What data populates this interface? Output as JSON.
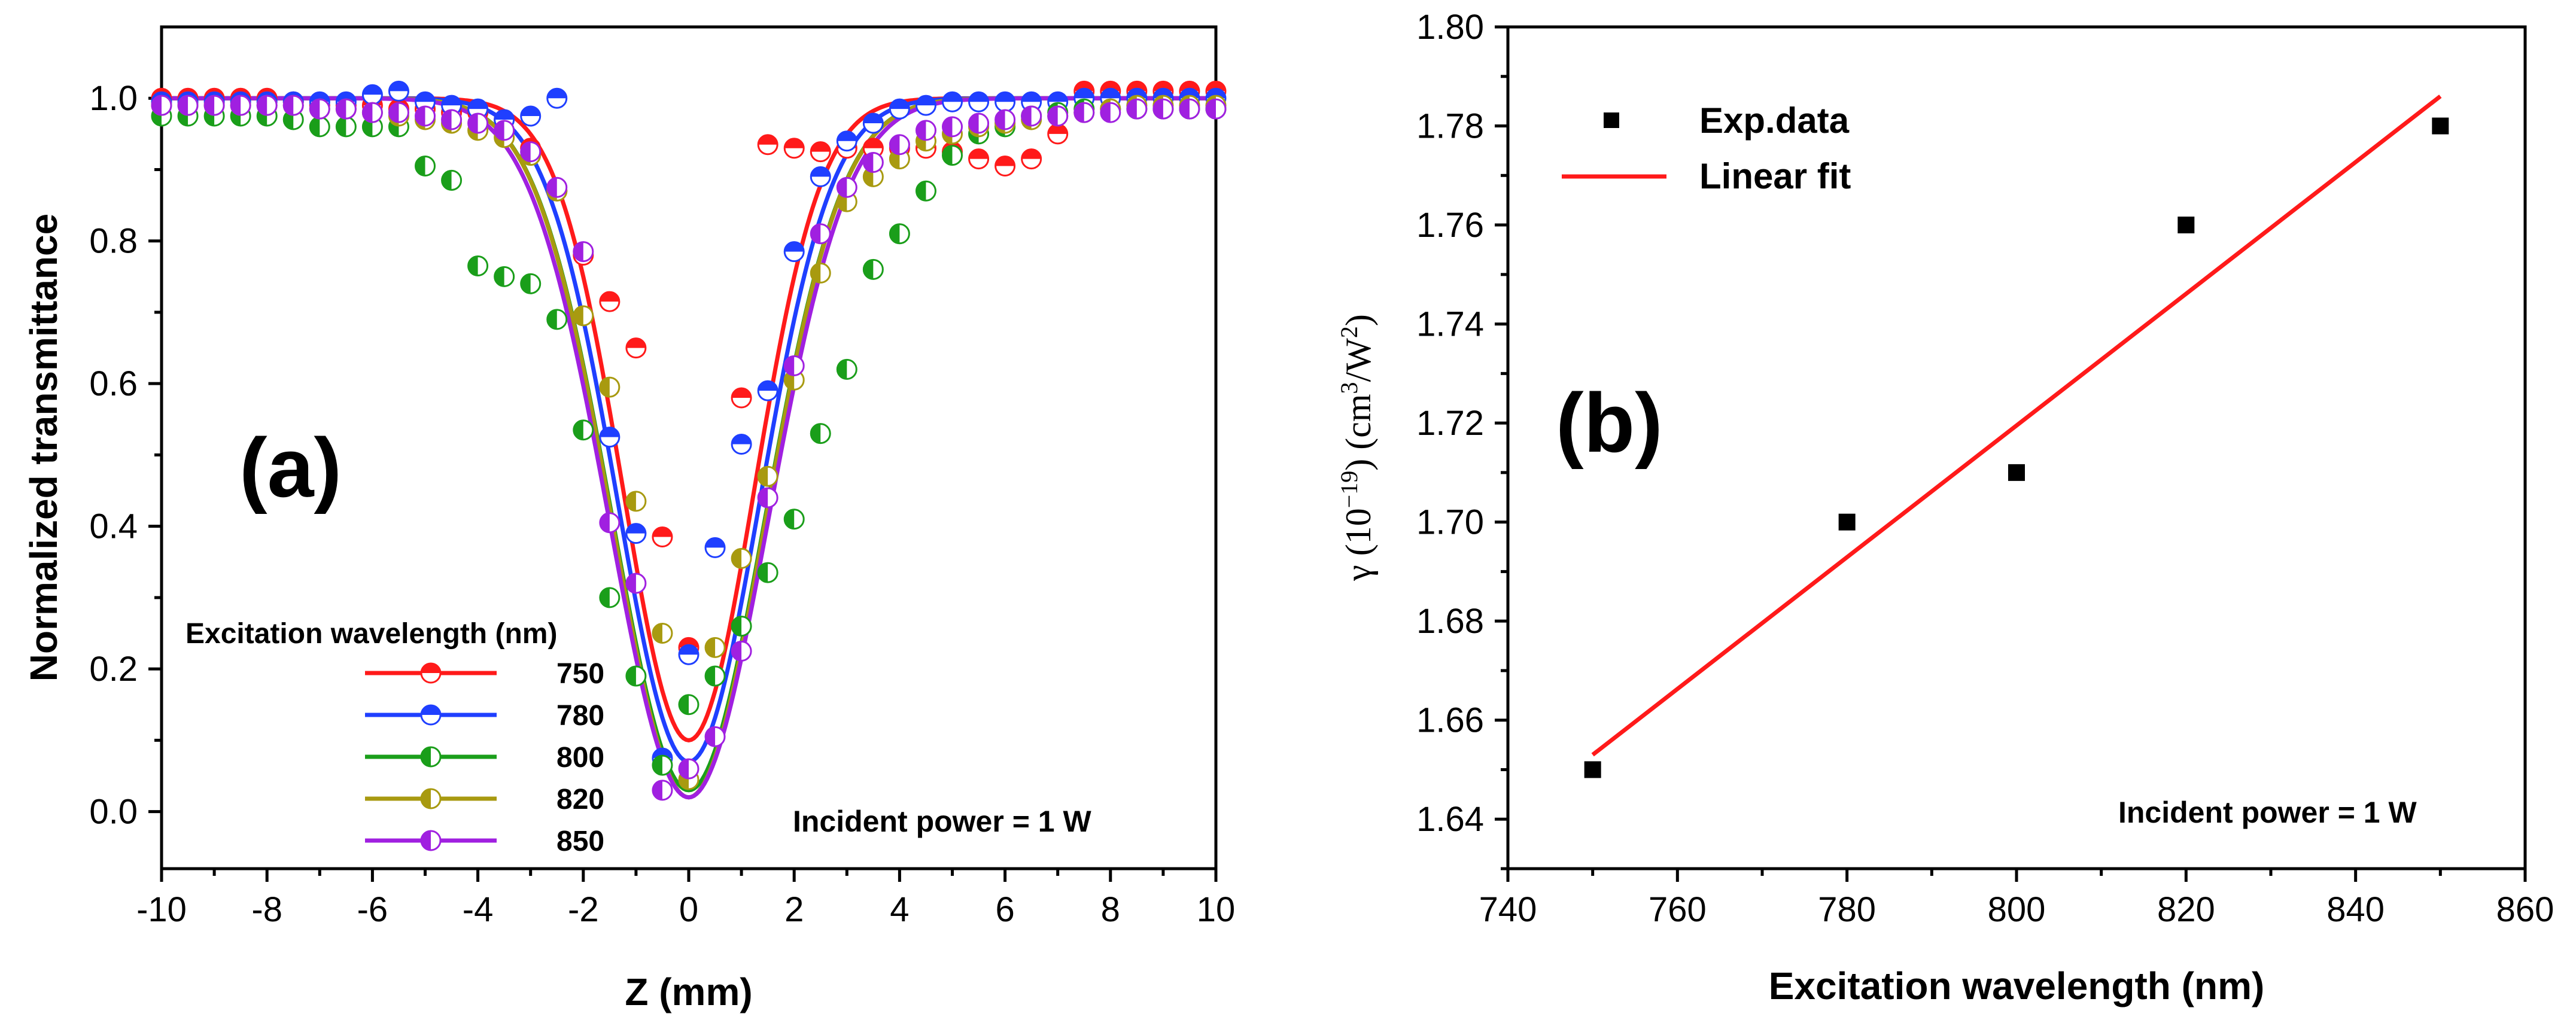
{
  "colors": {
    "750": "#ff1a1a",
    "780": "#1f3fff",
    "800": "#1a9e1a",
    "820": "#a89a10",
    "850": "#a020e0",
    "fit_b": "#ff1a1a",
    "points_b": "#000000"
  },
  "chart_data": [
    {
      "panel": "(a)",
      "type": "scatter",
      "xlabel": "Z (mm)",
      "ylabel": "Normalized transmittance",
      "xlim": [
        -10,
        10
      ],
      "ylim": [
        -0.08,
        1.1
      ],
      "xticks": [
        -10,
        -8,
        -6,
        -4,
        -2,
        0,
        2,
        4,
        6,
        8,
        10
      ],
      "xtick_labels": [
        "-10",
        "-8",
        "-6",
        "-4",
        "-2",
        "0",
        "2",
        "4",
        "6",
        "8",
        "10"
      ],
      "yticks": [
        0.0,
        0.2,
        0.4,
        0.6,
        0.8,
        1.0
      ],
      "ytick_labels": [
        "0.0",
        "0.2",
        "0.4",
        "0.6",
        "0.8",
        "1.0"
      ],
      "legend_title": "Excitation wavelength (nm)",
      "annotation": "Incident power = 1 W",
      "series": [
        {
          "name": "750",
          "color_key": "750",
          "marker_split": "horizontal",
          "fit": {
            "min": 0.1,
            "sigma": 1.25
          },
          "points": [
            [
              -10,
              1.0
            ],
            [
              -9.5,
              1.0
            ],
            [
              -9,
              1.0
            ],
            [
              -8.5,
              1.0
            ],
            [
              -8,
              1.0
            ],
            [
              -7.5,
              0.995
            ],
            [
              -7,
              0.99
            ],
            [
              -6.5,
              0.99
            ],
            [
              -6,
              0.99
            ],
            [
              -5.5,
              0.985
            ],
            [
              -5,
              0.985
            ],
            [
              -4.5,
              0.98
            ],
            [
              -4,
              0.98
            ],
            [
              -3.5,
              0.97
            ],
            [
              -3,
              0.93
            ],
            [
              -2.5,
              0.87
            ],
            [
              -2,
              0.78
            ],
            [
              -1.5,
              0.715
            ],
            [
              -1,
              0.65
            ],
            [
              -0.5,
              0.385
            ],
            [
              0,
              0.23
            ],
            [
              1,
              0.58
            ],
            [
              1.5,
              0.935
            ],
            [
              2,
              0.93
            ],
            [
              2.5,
              0.925
            ],
            [
              3,
              0.93
            ],
            [
              3.5,
              0.93
            ],
            [
              4,
              0.93
            ],
            [
              4.5,
              0.93
            ],
            [
              5,
              0.925
            ],
            [
              5.5,
              0.915
            ],
            [
              6,
              0.905
            ],
            [
              6.5,
              0.915
            ],
            [
              7,
              0.95
            ],
            [
              7.5,
              1.01
            ],
            [
              8,
              1.01
            ],
            [
              8.5,
              1.01
            ],
            [
              9,
              1.01
            ],
            [
              9.5,
              1.01
            ],
            [
              10,
              1.01
            ]
          ]
        },
        {
          "name": "780",
          "color_key": "780",
          "marker_split": "horizontal",
          "fit": {
            "min": 0.07,
            "sigma": 1.35
          },
          "points": [
            [
              -10,
              0.995
            ],
            [
              -9.5,
              0.995
            ],
            [
              -9,
              0.995
            ],
            [
              -8.5,
              0.995
            ],
            [
              -8,
              0.995
            ],
            [
              -7.5,
              0.995
            ],
            [
              -7,
              0.995
            ],
            [
              -6.5,
              0.995
            ],
            [
              -6,
              1.005
            ],
            [
              -5.5,
              1.01
            ],
            [
              -5,
              0.995
            ],
            [
              -4.5,
              0.99
            ],
            [
              -4,
              0.985
            ],
            [
              -3.5,
              0.97
            ],
            [
              -3,
              0.975
            ],
            [
              -2.5,
              1.0
            ],
            [
              -1.5,
              0.525
            ],
            [
              -1,
              0.39
            ],
            [
              -0.5,
              0.075
            ],
            [
              0,
              0.22
            ],
            [
              0.5,
              0.37
            ],
            [
              1,
              0.515
            ],
            [
              1.5,
              0.59
            ],
            [
              2,
              0.785
            ],
            [
              2.5,
              0.89
            ],
            [
              3,
              0.94
            ],
            [
              3.5,
              0.965
            ],
            [
              4,
              0.985
            ],
            [
              4.5,
              0.99
            ],
            [
              5,
              0.995
            ],
            [
              5.5,
              0.995
            ],
            [
              6,
              0.995
            ],
            [
              6.5,
              0.995
            ],
            [
              7,
              0.995
            ],
            [
              7.5,
              1.0
            ],
            [
              8,
              1.0
            ],
            [
              8.5,
              1.0
            ],
            [
              9,
              1.0
            ],
            [
              9.5,
              1.0
            ],
            [
              10,
              1.0
            ]
          ]
        },
        {
          "name": "800",
          "color_key": "800",
          "marker_split": "vertical",
          "fit": {
            "min": 0.03,
            "sigma": 1.45
          },
          "points": [
            [
              -10,
              0.975
            ],
            [
              -9.5,
              0.975
            ],
            [
              -9,
              0.975
            ],
            [
              -8.5,
              0.975
            ],
            [
              -8,
              0.975
            ],
            [
              -7.5,
              0.97
            ],
            [
              -7,
              0.96
            ],
            [
              -6.5,
              0.96
            ],
            [
              -6,
              0.96
            ],
            [
              -5.5,
              0.96
            ],
            [
              -5,
              0.905
            ],
            [
              -4.5,
              0.885
            ],
            [
              -4,
              0.765
            ],
            [
              -3.5,
              0.75
            ],
            [
              -3,
              0.74
            ],
            [
              -2.5,
              0.69
            ],
            [
              -2,
              0.535
            ],
            [
              -1.5,
              0.3
            ],
            [
              -1,
              0.19
            ],
            [
              -0.5,
              0.065
            ],
            [
              0,
              0.15
            ],
            [
              0.5,
              0.19
            ],
            [
              1,
              0.26
            ],
            [
              1.5,
              0.335
            ],
            [
              2,
              0.41
            ],
            [
              2.5,
              0.53
            ],
            [
              3,
              0.62
            ],
            [
              3.5,
              0.76
            ],
            [
              4,
              0.81
            ],
            [
              4.5,
              0.87
            ],
            [
              5,
              0.92
            ],
            [
              5.5,
              0.95
            ],
            [
              6,
              0.96
            ],
            [
              6.5,
              0.975
            ],
            [
              7,
              0.98
            ],
            [
              7.5,
              0.985
            ],
            [
              8,
              0.985
            ],
            [
              8.5,
              0.985
            ],
            [
              9,
              0.985
            ],
            [
              9.5,
              0.985
            ],
            [
              10,
              0.985
            ]
          ]
        },
        {
          "name": "820",
          "color_key": "820",
          "marker_split": "vertical",
          "fit": {
            "min": 0.02,
            "sigma": 1.45
          },
          "points": [
            [
              -10,
              0.99
            ],
            [
              -9.5,
              0.99
            ],
            [
              -9,
              0.99
            ],
            [
              -8.5,
              0.99
            ],
            [
              -8,
              0.99
            ],
            [
              -7.5,
              0.99
            ],
            [
              -7,
              0.985
            ],
            [
              -6.5,
              0.985
            ],
            [
              -6,
              0.98
            ],
            [
              -5.5,
              0.975
            ],
            [
              -5,
              0.97
            ],
            [
              -4.5,
              0.965
            ],
            [
              -4,
              0.955
            ],
            [
              -3.5,
              0.945
            ],
            [
              -3,
              0.92
            ],
            [
              -2.5,
              0.87
            ],
            [
              -2,
              0.695
            ],
            [
              -1.5,
              0.595
            ],
            [
              -1,
              0.435
            ],
            [
              -0.5,
              0.25
            ],
            [
              0,
              0.045
            ],
            [
              0.5,
              0.23
            ],
            [
              1,
              0.355
            ],
            [
              1.5,
              0.47
            ],
            [
              2,
              0.605
            ],
            [
              2.5,
              0.755
            ],
            [
              3,
              0.855
            ],
            [
              3.5,
              0.89
            ],
            [
              4,
              0.915
            ],
            [
              4.5,
              0.94
            ],
            [
              5,
              0.95
            ],
            [
              5.5,
              0.96
            ],
            [
              6,
              0.965
            ],
            [
              6.5,
              0.97
            ],
            [
              7,
              0.975
            ],
            [
              7.5,
              0.98
            ],
            [
              8,
              0.985
            ],
            [
              8.5,
              0.99
            ],
            [
              9,
              0.99
            ],
            [
              9.5,
              0.99
            ],
            [
              10,
              0.99
            ]
          ]
        },
        {
          "name": "850",
          "color_key": "850",
          "marker_split": "vertical",
          "fit": {
            "min": 0.02,
            "sigma": 1.5
          },
          "points": [
            [
              -10,
              0.99
            ],
            [
              -9.5,
              0.99
            ],
            [
              -9,
              0.99
            ],
            [
              -8.5,
              0.99
            ],
            [
              -8,
              0.99
            ],
            [
              -7.5,
              0.99
            ],
            [
              -7,
              0.985
            ],
            [
              -6.5,
              0.985
            ],
            [
              -6,
              0.98
            ],
            [
              -5.5,
              0.98
            ],
            [
              -5,
              0.975
            ],
            [
              -4.5,
              0.97
            ],
            [
              -4,
              0.965
            ],
            [
              -3.5,
              0.955
            ],
            [
              -3,
              0.925
            ],
            [
              -2.5,
              0.875
            ],
            [
              -2,
              0.785
            ],
            [
              -1.5,
              0.405
            ],
            [
              -1,
              0.32
            ],
            [
              -0.5,
              0.03
            ],
            [
              0,
              0.06
            ],
            [
              0.5,
              0.105
            ],
            [
              1,
              0.225
            ],
            [
              1.5,
              0.44
            ],
            [
              2,
              0.625
            ],
            [
              2.5,
              0.81
            ],
            [
              3,
              0.875
            ],
            [
              3.5,
              0.91
            ],
            [
              4,
              0.935
            ],
            [
              4.5,
              0.955
            ],
            [
              5,
              0.96
            ],
            [
              5.5,
              0.965
            ],
            [
              6,
              0.97
            ],
            [
              6.5,
              0.975
            ],
            [
              7,
              0.975
            ],
            [
              7.5,
              0.98
            ],
            [
              8,
              0.98
            ],
            [
              8.5,
              0.985
            ],
            [
              9,
              0.985
            ],
            [
              9.5,
              0.985
            ],
            [
              10,
              0.985
            ]
          ]
        }
      ]
    },
    {
      "panel": "(b)",
      "type": "scatter",
      "xlabel": "Excitation wavelength (nm)",
      "ylabel": "γ (10⁻¹⁹) (cm³/W²)",
      "ylabel_parts": {
        "greek": "γ (10",
        "exp1": "−19",
        "mid": ") (cm",
        "exp2": "3",
        "mid2": "/W",
        "exp3": "2",
        "end": ")"
      },
      "xlim": [
        740,
        860
      ],
      "ylim": [
        1.63,
        1.8
      ],
      "xticks": [
        740,
        760,
        780,
        800,
        820,
        840,
        860
      ],
      "xtick_labels": [
        "740",
        "760",
        "780",
        "800",
        "820",
        "840",
        "860"
      ],
      "yticks": [
        1.64,
        1.66,
        1.68,
        1.7,
        1.72,
        1.74,
        1.76,
        1.78,
        1.8
      ],
      "ytick_labels": [
        "1.64",
        "1.66",
        "1.68",
        "1.70",
        "1.72",
        "1.74",
        "1.76",
        "1.78",
        "1.80"
      ],
      "annotation": "Incident power = 1 W",
      "series": [
        {
          "name": "Exp.data",
          "x": [
            750,
            780,
            800,
            820,
            850
          ],
          "y": [
            1.65,
            1.7,
            1.71,
            1.76,
            1.78
          ]
        },
        {
          "name": "Linear fit",
          "x": [
            750,
            850
          ],
          "y": [
            1.653,
            1.786
          ]
        }
      ]
    }
  ]
}
